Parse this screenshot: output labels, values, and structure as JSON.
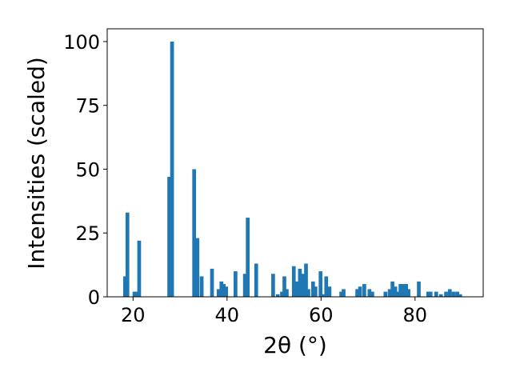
{
  "chart_data": {
    "type": "bar",
    "xlabel": "2θ (°)",
    "ylabel": "Intensities (scaled)",
    "xlim": [
      14.5,
      94.5
    ],
    "ylim": [
      0,
      105
    ],
    "xticks": [
      "20",
      "40",
      "60",
      "80"
    ],
    "yticks": [
      "0",
      "25",
      "50",
      "75",
      "100"
    ],
    "bar_color": "#1f77b4",
    "bar_width": 0.8,
    "grid": false,
    "x": [
      18.3,
      18.8,
      20.3,
      20.9,
      21.3,
      27.7,
      28.3,
      33.0,
      33.7,
      34.6,
      36.8,
      38.2,
      38.8,
      39.3,
      39.8,
      41.8,
      43.8,
      44.4,
      46.2,
      49.8,
      50.8,
      51.7,
      52.2,
      52.7,
      54.2,
      54.8,
      55.5,
      56.1,
      56.8,
      57.3,
      58.3,
      58.8,
      59.9,
      60.6,
      61.1,
      61.8,
      64.3,
      64.8,
      67.7,
      68.3,
      69.2,
      70.3,
      70.9,
      73.7,
      74.6,
      75.2,
      75.8,
      76.3,
      76.9,
      77.5,
      78.1,
      78.6,
      80.8,
      82.8,
      83.3,
      84.5,
      85.5,
      86.6,
      87.4,
      88.2,
      89.0,
      89.6
    ],
    "values": [
      8,
      33,
      2,
      2,
      22,
      47,
      100,
      50,
      23,
      8,
      11,
      3,
      6,
      5,
      4,
      10,
      9,
      31,
      13,
      9,
      1,
      2,
      8,
      3,
      12,
      6,
      11,
      9,
      13,
      3,
      6,
      4,
      10,
      1,
      8,
      4,
      2,
      3,
      3,
      4,
      5,
      3,
      2,
      2,
      3,
      6,
      4,
      2,
      5,
      5,
      5,
      3,
      6,
      2,
      2,
      2,
      1,
      2,
      3,
      2,
      2,
      1
    ]
  }
}
